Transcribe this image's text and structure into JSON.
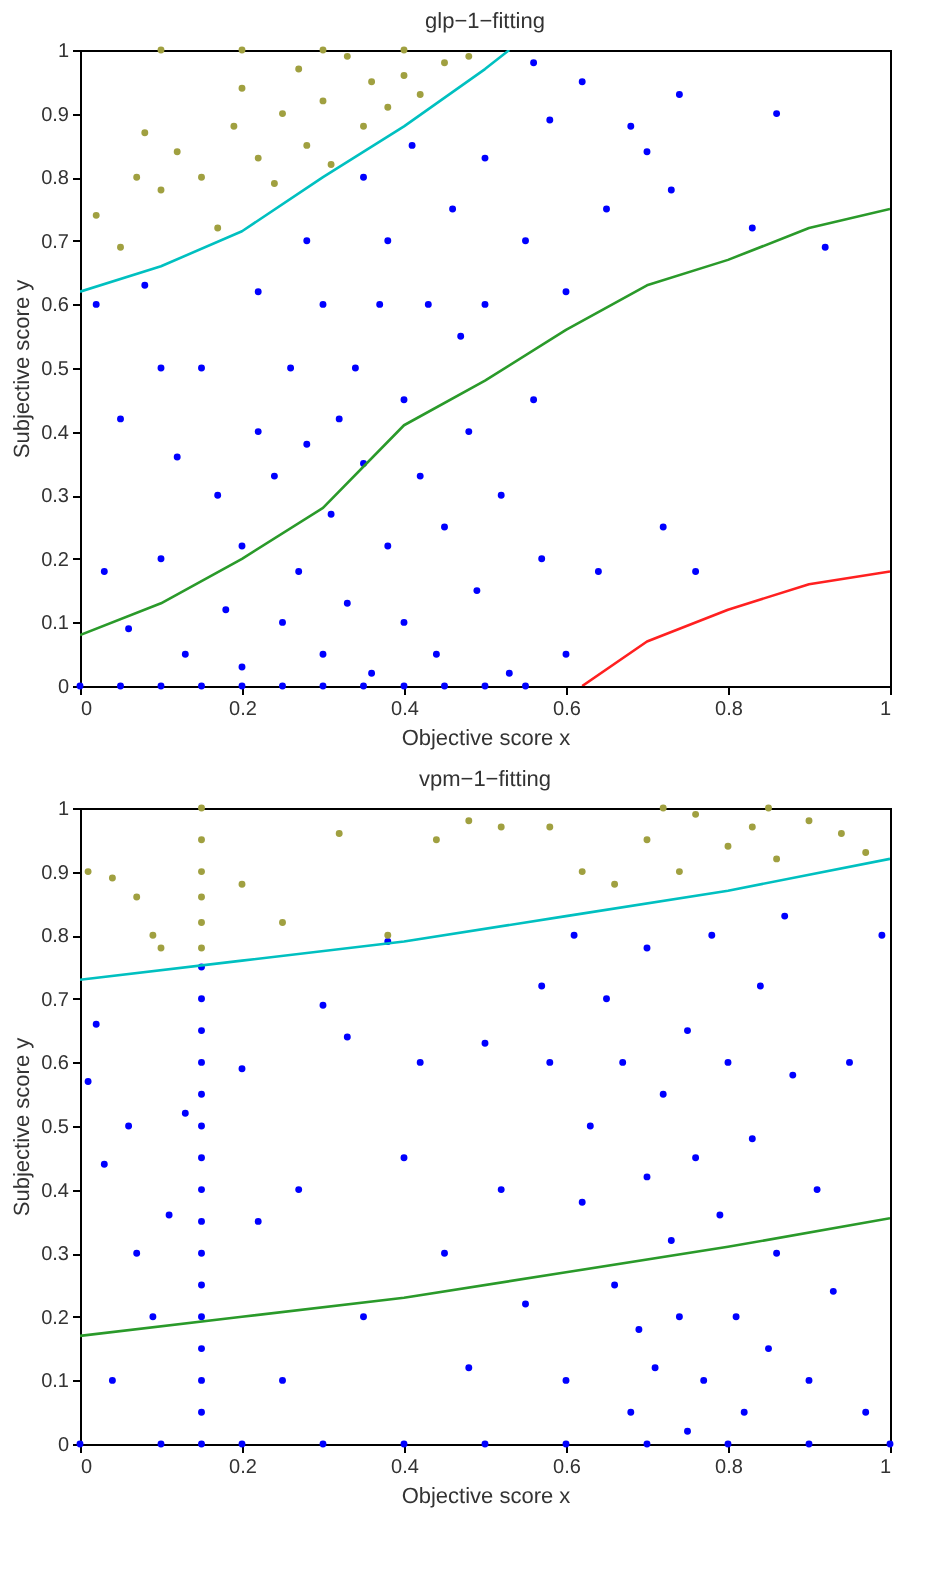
{
  "chart_data": [
    {
      "type": "scatter",
      "title": "glp−1−fitting",
      "xlabel": "Objective score x",
      "ylabel": "Subjective score y",
      "xlim": [
        0,
        1
      ],
      "ylim": [
        0,
        1
      ],
      "xticks": [
        0,
        0.2,
        0.4,
        0.6,
        0.8,
        1
      ],
      "yticks": [
        0,
        0.1,
        0.2,
        0.3,
        0.4,
        0.5,
        0.6,
        0.7,
        0.8,
        0.9,
        1
      ],
      "grid": false,
      "series": [
        {
          "color": "#0000ff",
          "x": [
            0.02,
            0.05,
            0.08,
            0.1,
            0.12,
            0.03,
            0.06,
            0.1,
            0.13,
            0.15,
            0.17,
            0.18,
            0.2,
            0.2,
            0.22,
            0.22,
            0.24,
            0.25,
            0.26,
            0.27,
            0.28,
            0.28,
            0.3,
            0.3,
            0.31,
            0.32,
            0.33,
            0.34,
            0.35,
            0.35,
            0.36,
            0.37,
            0.38,
            0.38,
            0.4,
            0.4,
            0.41,
            0.42,
            0.43,
            0.44,
            0.45,
            0.46,
            0.47,
            0.48,
            0.49,
            0.5,
            0.5,
            0.52,
            0.53,
            0.55,
            0.56,
            0.57,
            0.58,
            0.6,
            0.6,
            0.62,
            0.64,
            0.65,
            0.68,
            0.7,
            0.72,
            0.73,
            0.74,
            0.76,
            0.83,
            0.86,
            0.92,
            0.56,
            0.0,
            0.05,
            0.1,
            0.15,
            0.2,
            0.25,
            0.3,
            0.35,
            0.4,
            0.45,
            0.5,
            0.55
          ],
          "values": [
            0.6,
            0.42,
            0.63,
            0.5,
            0.36,
            0.18,
            0.09,
            0.2,
            0.05,
            0.5,
            0.3,
            0.12,
            0.22,
            0.03,
            0.4,
            0.62,
            0.33,
            0.1,
            0.5,
            0.18,
            0.7,
            0.38,
            0.05,
            0.6,
            0.27,
            0.42,
            0.13,
            0.5,
            0.8,
            0.35,
            0.02,
            0.6,
            0.22,
            0.7,
            0.45,
            0.1,
            0.85,
            0.33,
            0.6,
            0.05,
            0.25,
            0.75,
            0.55,
            0.4,
            0.15,
            0.83,
            0.6,
            0.3,
            0.02,
            0.7,
            0.45,
            0.2,
            0.89,
            0.62,
            0.05,
            0.95,
            0.18,
            0.75,
            0.88,
            0.84,
            0.25,
            0.78,
            0.93,
            0.18,
            0.72,
            0.9,
            0.69,
            0.98,
            0,
            0,
            0,
            0,
            0,
            0,
            0,
            0,
            0,
            0,
            0,
            0
          ]
        },
        {
          "color": "#a0a040",
          "x": [
            0.02,
            0.05,
            0.08,
            0.07,
            0.1,
            0.12,
            0.15,
            0.17,
            0.19,
            0.2,
            0.22,
            0.24,
            0.25,
            0.27,
            0.28,
            0.3,
            0.31,
            0.33,
            0.35,
            0.36,
            0.38,
            0.4,
            0.42,
            0.45,
            0.48,
            0.1,
            0.2,
            0.3,
            0.4
          ],
          "values": [
            0.74,
            0.69,
            0.87,
            0.8,
            0.78,
            0.84,
            0.8,
            0.72,
            0.88,
            0.94,
            0.83,
            0.79,
            0.9,
            0.97,
            0.85,
            0.92,
            0.82,
            0.99,
            0.88,
            0.95,
            0.91,
            0.96,
            0.93,
            0.98,
            0.99,
            1,
            1,
            1,
            1
          ]
        },
        {
          "type": "line",
          "color": "#00c0c0",
          "x": [
            0,
            0.1,
            0.2,
            0.3,
            0.4,
            0.5,
            0.53
          ],
          "values": [
            0.62,
            0.66,
            0.715,
            0.8,
            0.88,
            0.97,
            1
          ]
        },
        {
          "type": "line",
          "color": "#2a9a2a",
          "x": [
            0,
            0.1,
            0.2,
            0.3,
            0.4,
            0.5,
            0.6,
            0.7,
            0.8,
            0.9,
            1
          ],
          "values": [
            0.08,
            0.13,
            0.2,
            0.28,
            0.41,
            0.48,
            0.56,
            0.63,
            0.67,
            0.72,
            0.75
          ]
        },
        {
          "type": "line",
          "color": "#ff2020",
          "x": [
            0.62,
            0.7,
            0.8,
            0.9,
            1
          ],
          "values": [
            0,
            0.07,
            0.12,
            0.16,
            0.18
          ]
        }
      ]
    },
    {
      "type": "scatter",
      "title": "vpm−1−fitting",
      "xlabel": "Objective score x",
      "ylabel": "Subjective score y",
      "xlim": [
        0,
        1
      ],
      "ylim": [
        0,
        1
      ],
      "xticks": [
        0,
        0.2,
        0.4,
        0.6,
        0.8,
        1
      ],
      "yticks": [
        0,
        0.1,
        0.2,
        0.3,
        0.4,
        0.5,
        0.6,
        0.7,
        0.8,
        0.9,
        1
      ],
      "grid": false,
      "series": [
        {
          "color": "#0000ff",
          "x": [
            0.15,
            0.15,
            0.15,
            0.15,
            0.15,
            0.15,
            0.15,
            0.15,
            0.15,
            0.15,
            0.15,
            0.15,
            0.15,
            0.15,
            0.15,
            0.15,
            0.01,
            0.02,
            0.03,
            0.04,
            0.06,
            0.07,
            0.09,
            0.11,
            0.13,
            0.2,
            0.22,
            0.25,
            0.27,
            0.3,
            0.33,
            0.35,
            0.38,
            0.4,
            0.42,
            0.45,
            0.48,
            0.5,
            0.52,
            0.55,
            0.57,
            0.58,
            0.6,
            0.61,
            0.62,
            0.63,
            0.65,
            0.66,
            0.67,
            0.68,
            0.69,
            0.7,
            0.7,
            0.71,
            0.72,
            0.73,
            0.74,
            0.75,
            0.75,
            0.76,
            0.77,
            0.78,
            0.79,
            0.8,
            0.81,
            0.82,
            0.83,
            0.84,
            0.85,
            0.86,
            0.87,
            0.88,
            0.9,
            0.91,
            0.93,
            0.95,
            0.97,
            0.99,
            0.0,
            0.1,
            0.2,
            0.3,
            0.4,
            0.5,
            0.6,
            0.7,
            0.8,
            0.9,
            1.0
          ],
          "values": [
            0,
            0.05,
            0.1,
            0.15,
            0.2,
            0.25,
            0.3,
            0.35,
            0.4,
            0.45,
            0.5,
            0.55,
            0.6,
            0.65,
            0.7,
            0.75,
            0.57,
            0.66,
            0.44,
            0.1,
            0.5,
            0.3,
            0.2,
            0.36,
            0.52,
            0.59,
            0.35,
            0.1,
            0.4,
            0.69,
            0.64,
            0.2,
            0.79,
            0.45,
            0.6,
            0.3,
            0.12,
            0.63,
            0.4,
            0.22,
            0.72,
            0.6,
            0.1,
            0.8,
            0.38,
            0.5,
            0.7,
            0.25,
            0.6,
            0.05,
            0.18,
            0.42,
            0.78,
            0.12,
            0.55,
            0.32,
            0.2,
            0.65,
            0.02,
            0.45,
            0.1,
            0.8,
            0.36,
            0.6,
            0.2,
            0.05,
            0.48,
            0.72,
            0.15,
            0.3,
            0.83,
            0.58,
            0.1,
            0.4,
            0.24,
            0.6,
            0.05,
            0.8,
            0,
            0,
            0,
            0,
            0,
            0,
            0,
            0,
            0,
            0,
            0
          ]
        },
        {
          "color": "#a0a040",
          "x": [
            0.15,
            0.15,
            0.15,
            0.15,
            0.15,
            0.15,
            0.01,
            0.04,
            0.07,
            0.09,
            0.1,
            0.2,
            0.25,
            0.32,
            0.38,
            0.44,
            0.48,
            0.52,
            0.58,
            0.62,
            0.66,
            0.7,
            0.74,
            0.76,
            0.8,
            0.83,
            0.86,
            0.9,
            0.94,
            0.97,
            0.72,
            0.85
          ],
          "values": [
            0.78,
            0.82,
            0.86,
            0.9,
            0.95,
            1,
            0.9,
            0.89,
            0.86,
            0.8,
            0.78,
            0.88,
            0.82,
            0.96,
            0.8,
            0.95,
            0.98,
            0.97,
            0.97,
            0.9,
            0.88,
            0.95,
            0.9,
            0.99,
            0.94,
            0.97,
            0.92,
            0.98,
            0.96,
            0.93,
            1,
            1
          ]
        },
        {
          "type": "line",
          "color": "#00c0c0",
          "x": [
            0,
            0.2,
            0.4,
            0.6,
            0.8,
            1
          ],
          "values": [
            0.73,
            0.76,
            0.79,
            0.83,
            0.87,
            0.92
          ]
        },
        {
          "type": "line",
          "color": "#2a9a2a",
          "x": [
            0,
            0.2,
            0.4,
            0.6,
            0.8,
            1
          ],
          "values": [
            0.17,
            0.2,
            0.23,
            0.27,
            0.31,
            0.355
          ]
        }
      ]
    }
  ]
}
